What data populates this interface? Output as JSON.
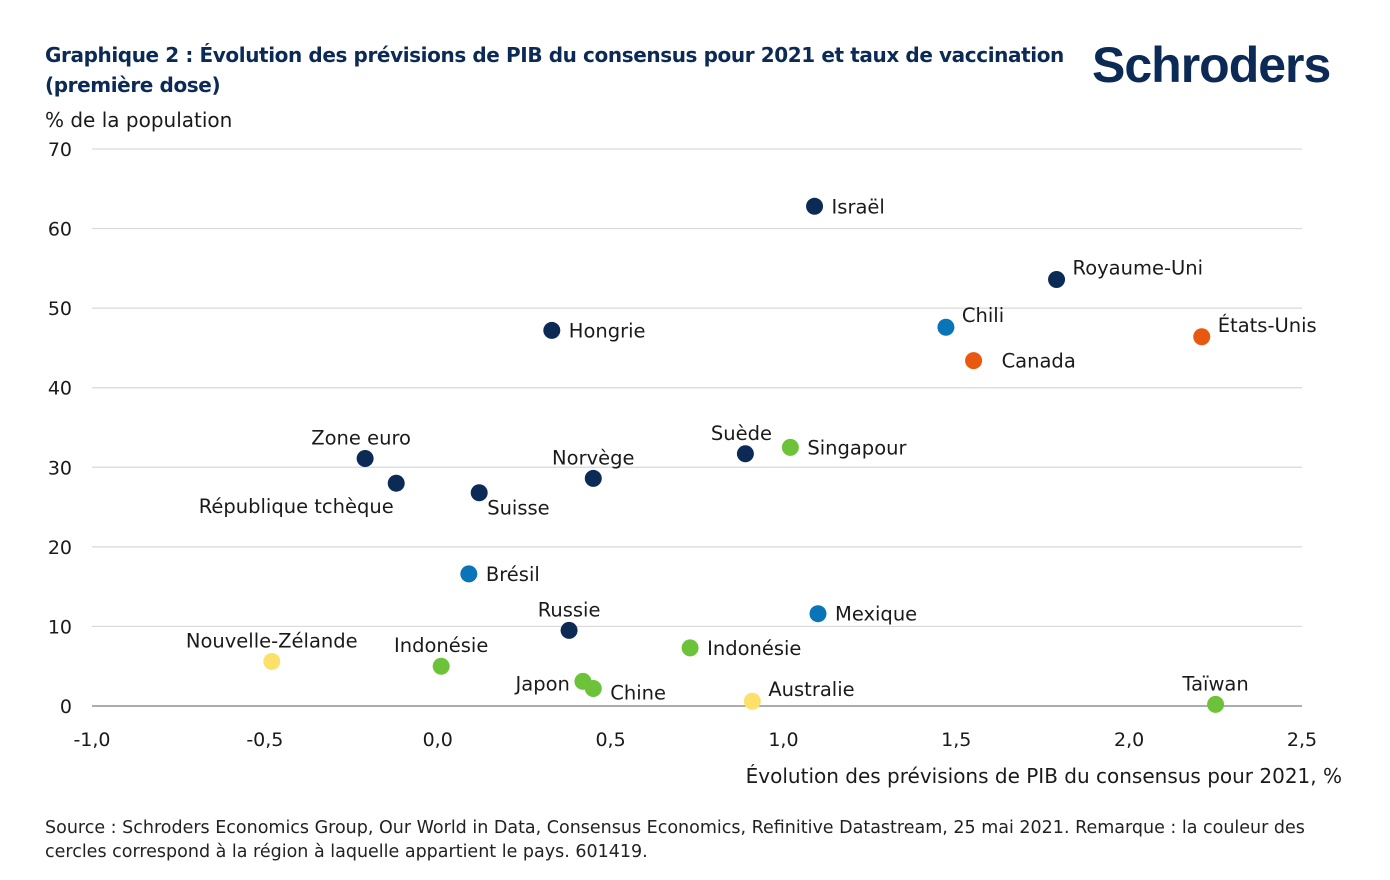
{
  "header": {
    "title": "Graphique 2 : Évolution des prévisions de PIB du consensus pour 2021 et taux de vaccination (première dose)",
    "logo": "Schroders"
  },
  "footer": {
    "source": "Source : Schroders Economics Group, Our World in Data, Consensus Economics, Refinitive Datastream, 25 mai 2021. Remarque : la couleur des cercles correspond à la région à laquelle appartient le pays. 601419."
  },
  "colors": {
    "dark_blue": "#0b2a55",
    "mid_blue": "#0a74b9",
    "orange": "#e8580f",
    "green": "#6cc33a",
    "yellow": "#fde06a",
    "grid": "#d9d9d9"
  },
  "chart_data": {
    "type": "scatter",
    "title": "Graphique 2 : Évolution des prévisions de PIB du consensus pour 2021 et taux de vaccination (première dose)",
    "xlabel": "Évolution des prévisions de PIB du consensus pour 2021, %",
    "ylabel": "% de la population",
    "xlim": [
      -1.0,
      2.5
    ],
    "ylim": [
      0,
      70
    ],
    "x_ticks": [
      -1.0,
      -0.5,
      0.0,
      0.5,
      1.0,
      1.5,
      2.0,
      2.5
    ],
    "x_tick_labels": [
      "-1,0",
      "-0,5",
      "0,0",
      "0,5",
      "1,0",
      "1,5",
      "2,0",
      "2,5"
    ],
    "y_ticks": [
      0,
      10,
      20,
      30,
      40,
      50,
      60,
      70
    ],
    "y_tick_labels": [
      "0",
      "10",
      "20",
      "30",
      "40",
      "50",
      "60",
      "70"
    ],
    "grid": "horizontal",
    "legend": "none",
    "points": [
      {
        "label": "Israël",
        "x": 1.09,
        "y": 62.8,
        "color": "dark_blue",
        "label_pos": "right"
      },
      {
        "label": "Royaume-Uni",
        "x": 1.79,
        "y": 53.6,
        "color": "dark_blue",
        "label_pos": "right-up"
      },
      {
        "label": "Chili",
        "x": 1.47,
        "y": 47.6,
        "color": "mid_blue",
        "label_pos": "right-up"
      },
      {
        "label": "États-Unis",
        "x": 2.21,
        "y": 46.4,
        "color": "orange",
        "label_pos": "right-up"
      },
      {
        "label": "Hongrie",
        "x": 0.33,
        "y": 47.2,
        "color": "dark_blue",
        "label_pos": "right"
      },
      {
        "label": "Canada",
        "x": 1.55,
        "y": 43.4,
        "color": "orange",
        "label_pos": "right-wide"
      },
      {
        "label": "Zone euro",
        "x": -0.21,
        "y": 31.1,
        "color": "dark_blue",
        "label_pos": "above-left"
      },
      {
        "label": "Norvège",
        "x": 0.45,
        "y": 28.6,
        "color": "dark_blue",
        "label_pos": "above"
      },
      {
        "label": "Suède",
        "x": 0.89,
        "y": 31.7,
        "color": "dark_blue",
        "label_pos": "above-left"
      },
      {
        "label": "Singapour",
        "x": 1.02,
        "y": 32.5,
        "color": "green",
        "label_pos": "right"
      },
      {
        "label": "République tchèque",
        "x": -0.12,
        "y": 28.0,
        "color": "dark_blue",
        "label_pos": "below-left"
      },
      {
        "label": "Suisse",
        "x": 0.12,
        "y": 26.8,
        "color": "dark_blue",
        "label_pos": "below-right"
      },
      {
        "label": "Brésil",
        "x": 0.09,
        "y": 16.6,
        "color": "mid_blue",
        "label_pos": "right"
      },
      {
        "label": "Mexique",
        "x": 1.1,
        "y": 11.6,
        "color": "mid_blue",
        "label_pos": "right"
      },
      {
        "label": "Russie",
        "x": 0.38,
        "y": 9.5,
        "color": "dark_blue",
        "label_pos": "above"
      },
      {
        "label": "Nouvelle-Zélande",
        "x": -0.48,
        "y": 5.6,
        "color": "yellow",
        "label_pos": "above"
      },
      {
        "label": "Indonésie",
        "x": 0.01,
        "y": 5.0,
        "color": "green",
        "label_pos": "above"
      },
      {
        "label": "Indonésie",
        "x": 0.73,
        "y": 7.3,
        "color": "green",
        "label_pos": "right"
      },
      {
        "label": "Japon",
        "x": 0.42,
        "y": 3.1,
        "color": "green",
        "label_pos": "left"
      },
      {
        "label": "Chine",
        "x": 0.45,
        "y": 2.2,
        "color": "green",
        "label_pos": "right-down"
      },
      {
        "label": "Australie",
        "x": 0.91,
        "y": 0.6,
        "color": "yellow",
        "label_pos": "right-up"
      },
      {
        "label": "Taïwan",
        "x": 2.25,
        "y": 0.2,
        "color": "green",
        "label_pos": "above"
      }
    ]
  }
}
